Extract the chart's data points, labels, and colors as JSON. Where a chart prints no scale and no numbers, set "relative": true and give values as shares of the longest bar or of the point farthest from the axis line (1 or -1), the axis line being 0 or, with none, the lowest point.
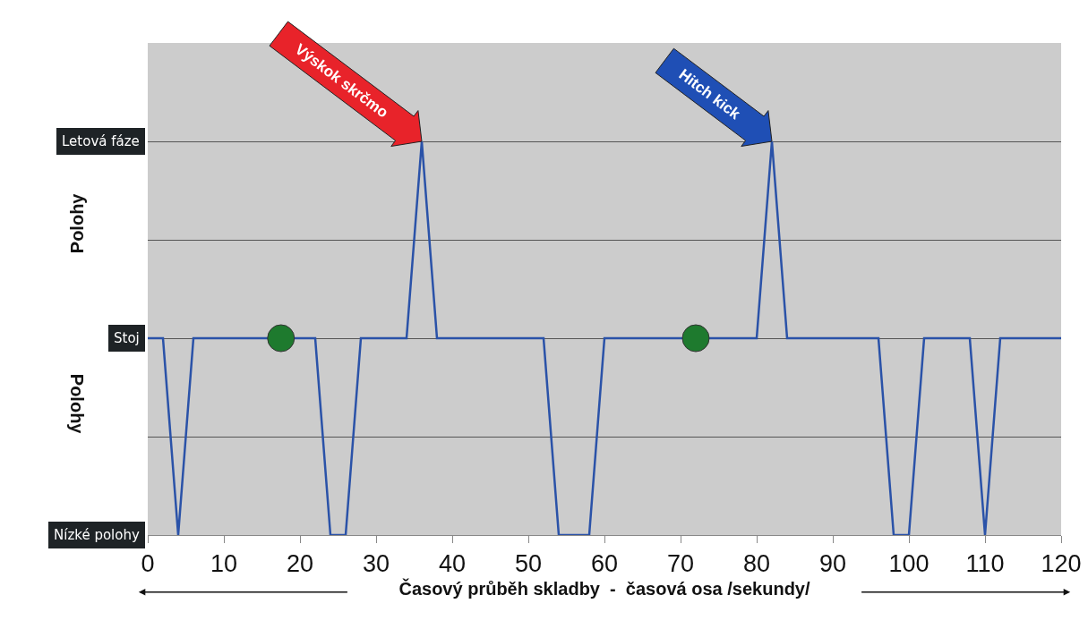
{
  "chart_data": {
    "type": "line",
    "xlabel": "Časový průběh skladby  -  časová osa /sekundy/",
    "ylabel": "Polohy",
    "relative": true,
    "series": [
      {
        "type": "line",
        "color": "#2a52a8",
        "x": [
          0,
          2,
          4,
          6,
          22,
          24,
          26,
          28,
          34,
          36,
          38,
          52,
          54,
          58,
          60,
          80,
          82,
          84,
          96,
          98,
          100,
          102,
          108,
          110,
          112,
          120
        ],
        "values": [
          0,
          0,
          -1,
          0,
          0,
          -1,
          -1,
          0,
          0,
          1,
          0,
          0,
          -1,
          -1,
          0,
          0,
          1,
          0,
          0,
          -1,
          -1,
          0,
          0,
          -1,
          0,
          0
        ]
      },
      {
        "type": "scatter",
        "color": "#1e7a2e",
        "x": [
          17.5,
          72
        ],
        "values": [
          0,
          0
        ]
      }
    ],
    "xlim": [
      0,
      120
    ],
    "xticks": [
      0,
      10,
      20,
      30,
      40,
      50,
      60,
      70,
      80,
      90,
      100,
      110,
      120
    ],
    "grid": "y",
    "annotations": [
      "Letová fáze",
      "Stoj",
      "Nízké polohy",
      {
        "text": "Výskok skrčmo",
        "x": 36,
        "y": 1
      },
      {
        "text": "Hitch kick",
        "x": 82,
        "y": 1
      },
      "Polohy"
    ]
  }
}
